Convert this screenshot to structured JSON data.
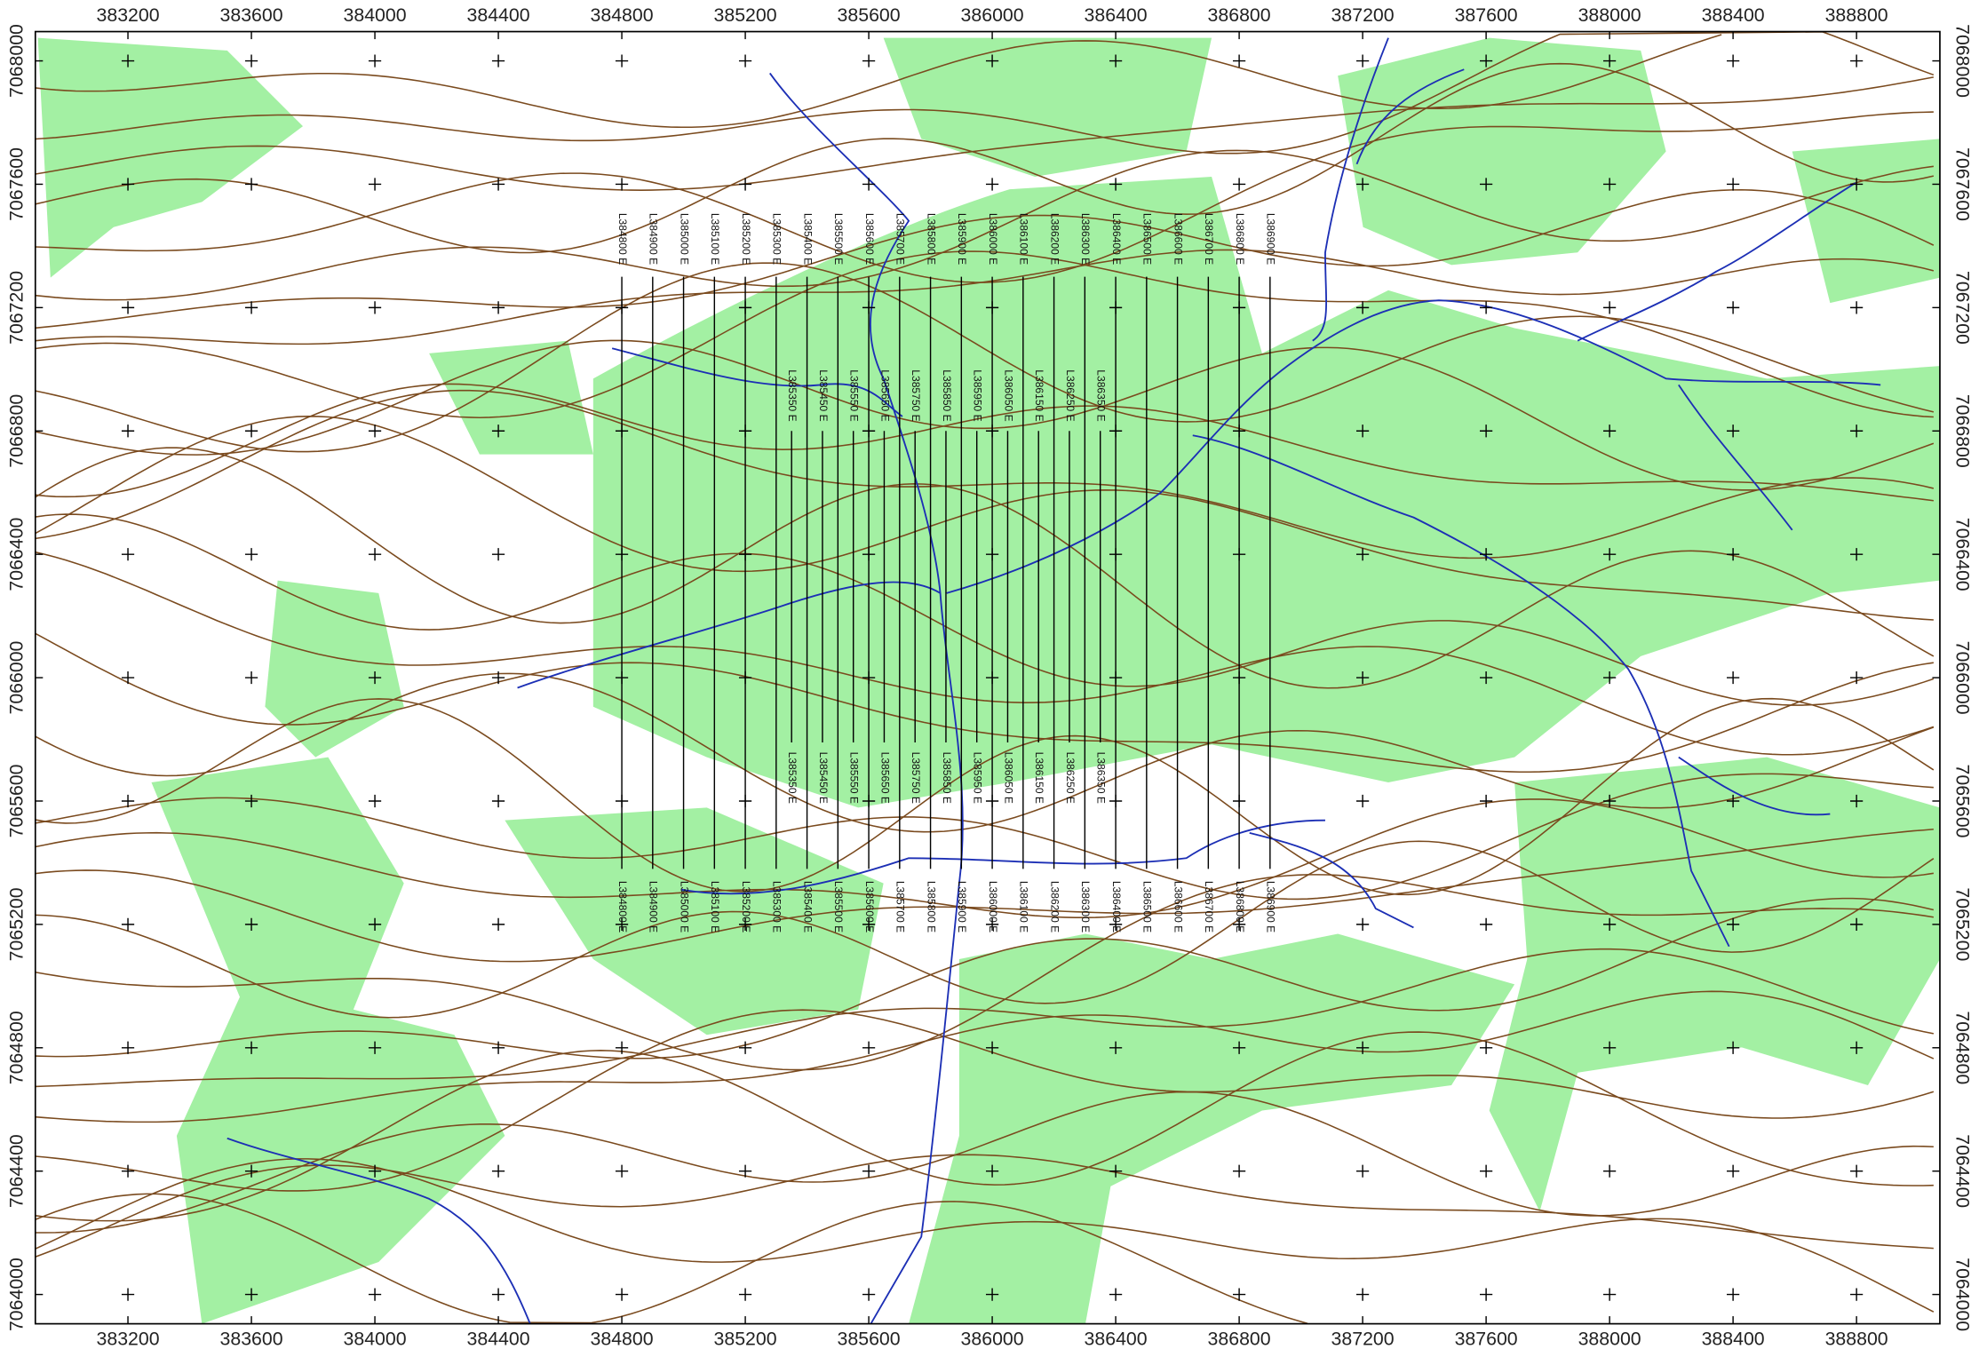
{
  "map": {
    "xlim": [
      382900,
      389070
    ],
    "ylim": [
      7063905,
      7068095
    ],
    "xticks": [
      383200,
      383600,
      384000,
      384400,
      384800,
      385200,
      385600,
      386000,
      386400,
      386800,
      387200,
      387600,
      388000,
      388400,
      388800
    ],
    "yticks": [
      7064000,
      7064400,
      7064800,
      7065200,
      7065600,
      7066000,
      7066400,
      7066800,
      7067200,
      7067600,
      7068000
    ],
    "survey_lines": [
      {
        "label": "L384800 E",
        "easting": 384800,
        "from": 7065380,
        "to": 7067300
      },
      {
        "label": "L384900 E",
        "easting": 384900,
        "from": 7065380,
        "to": 7067300
      },
      {
        "label": "L385000 E",
        "easting": 385000,
        "from": 7065380,
        "to": 7067300
      },
      {
        "label": "L385100 E",
        "easting": 385100,
        "from": 7065380,
        "to": 7067300
      },
      {
        "label": "L385200 E",
        "easting": 385200,
        "from": 7065380,
        "to": 7067300
      },
      {
        "label": "L385300 E",
        "easting": 385300,
        "from": 7065380,
        "to": 7067300
      },
      {
        "label": "L385400 E",
        "easting": 385400,
        "from": 7065380,
        "to": 7067300
      },
      {
        "label": "L385500 E",
        "easting": 385500,
        "from": 7065380,
        "to": 7067300
      },
      {
        "label": "L385600 E",
        "easting": 385600,
        "from": 7065380,
        "to": 7067300
      },
      {
        "label": "L385700 E",
        "easting": 385700,
        "from": 7065380,
        "to": 7067300
      },
      {
        "label": "L385800 E",
        "easting": 385800,
        "from": 7065380,
        "to": 7067300
      },
      {
        "label": "L385900 E",
        "easting": 385900,
        "from": 7065380,
        "to": 7067300
      },
      {
        "label": "L386000 E",
        "easting": 386000,
        "from": 7065380,
        "to": 7067300
      },
      {
        "label": "L386100 E",
        "easting": 386100,
        "from": 7065380,
        "to": 7067300
      },
      {
        "label": "L386200 E",
        "easting": 386200,
        "from": 7065380,
        "to": 7067300
      },
      {
        "label": "L386300 E",
        "easting": 386300,
        "from": 7065380,
        "to": 7067300
      },
      {
        "label": "L386400 E",
        "easting": 386400,
        "from": 7065380,
        "to": 7067300
      },
      {
        "label": "L386500 E",
        "easting": 386500,
        "from": 7065380,
        "to": 7067300
      },
      {
        "label": "L386600 E",
        "easting": 386600,
        "from": 7065380,
        "to": 7067300
      },
      {
        "label": "L386700 E",
        "easting": 386700,
        "from": 7065380,
        "to": 7067300
      },
      {
        "label": "L386800 E",
        "easting": 386800,
        "from": 7065380,
        "to": 7067300
      },
      {
        "label": "L386900 E",
        "easting": 386900,
        "from": 7065380,
        "to": 7067300
      }
    ],
    "infill_lines": [
      {
        "label": "L385350 E",
        "easting": 385350,
        "from": 7065790,
        "to": 7066800
      },
      {
        "label": "L385450 E",
        "easting": 385450,
        "from": 7065790,
        "to": 7066800
      },
      {
        "label": "L385550 E",
        "easting": 385550,
        "from": 7065790,
        "to": 7066800
      },
      {
        "label": "L385650 E",
        "easting": 385650,
        "from": 7065790,
        "to": 7066800
      },
      {
        "label": "L385750 E",
        "easting": 385750,
        "from": 7065790,
        "to": 7066800
      },
      {
        "label": "L385850 E",
        "easting": 385850,
        "from": 7065790,
        "to": 7066800
      },
      {
        "label": "L385950 E",
        "easting": 385950,
        "from": 7065790,
        "to": 7066800
      },
      {
        "label": "L386050 E",
        "easting": 386050,
        "from": 7065790,
        "to": 7066800
      },
      {
        "label": "L386150 E",
        "easting": 386150,
        "from": 7065790,
        "to": 7066800
      },
      {
        "label": "L386250 E",
        "easting": 386250,
        "from": 7065790,
        "to": 7066800
      },
      {
        "label": "L386350 E",
        "easting": 386350,
        "from": 7065790,
        "to": 7066800
      }
    ]
  }
}
